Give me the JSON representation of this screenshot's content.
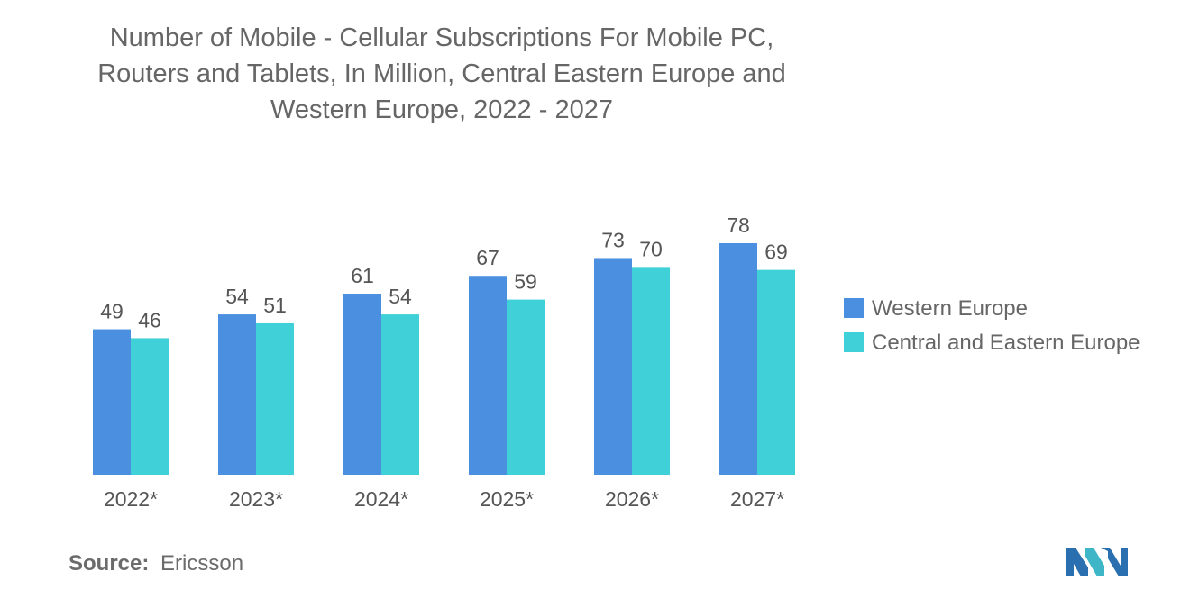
{
  "title_lines": [
    "Number of Mobile - Cellular Subscriptions For Mobile PC,",
    "Routers and Tablets, In Million, Central Eastern Europe and",
    "Western Europe, 2022 - 2027"
  ],
  "source": {
    "label": "Source:",
    "value": "Ericsson"
  },
  "logo_icon": "mordor-intelligence-logo-icon",
  "chart_data": {
    "type": "bar",
    "categories": [
      "2022*",
      "2023*",
      "2024*",
      "2025*",
      "2026*",
      "2027*"
    ],
    "series": [
      {
        "name": "Western Europe",
        "values": [
          49,
          54,
          61,
          67,
          73,
          78
        ],
        "color": "#4a8fe0"
      },
      {
        "name": "Central and Eastern Europe",
        "values": [
          46,
          51,
          54,
          59,
          70,
          69
        ],
        "color": "#3fd0d8"
      }
    ],
    "ylim": [
      0,
      78
    ],
    "grid": false,
    "legend_position": "right",
    "data_labels": true
  }
}
